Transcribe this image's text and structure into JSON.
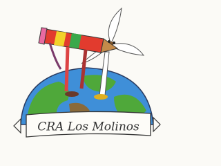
{
  "banner": {
    "text": "CRA Los Molinos"
  }
}
